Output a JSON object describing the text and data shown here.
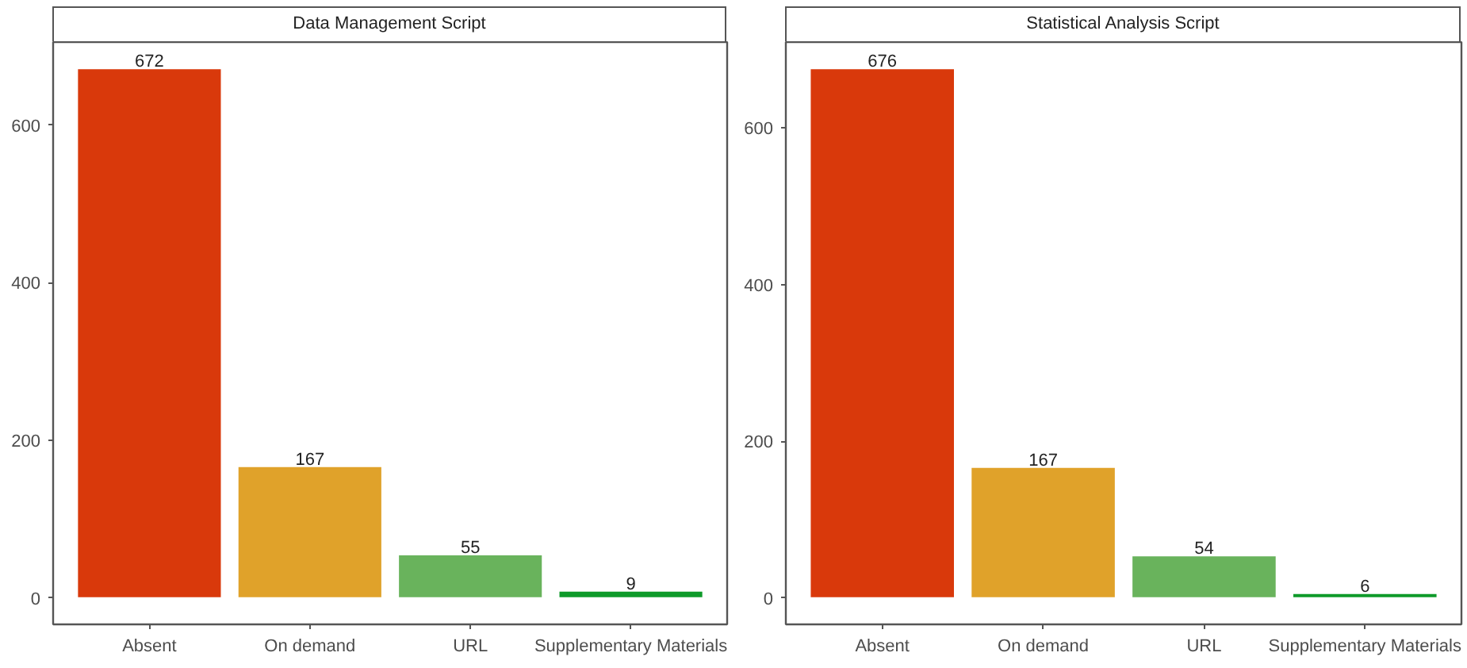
{
  "chart_data": [
    {
      "type": "bar",
      "title": "Data Management Script",
      "categories": [
        "Absent",
        "On demand",
        "URL",
        "Supplementary Materials"
      ],
      "values": [
        672,
        167,
        55,
        9
      ],
      "colors": [
        "#d9390b",
        "#e0a22a",
        "#69b35c",
        "#0e9a2a"
      ],
      "ylim": [
        -33.6,
        705.6
      ],
      "yticks": [
        0,
        200,
        400,
        600
      ],
      "data_labels": true
    },
    {
      "type": "bar",
      "title": "Statistical Analysis Script",
      "categories": [
        "Absent",
        "On demand",
        "URL",
        "Supplementary Materials"
      ],
      "values": [
        676,
        167,
        54,
        6
      ],
      "colors": [
        "#d9390b",
        "#e0a22a",
        "#69b35c",
        "#0e9a2a"
      ],
      "ylim": [
        -33.8,
        709.8
      ],
      "yticks": [
        0,
        200,
        400,
        600
      ],
      "data_labels": true
    }
  ]
}
